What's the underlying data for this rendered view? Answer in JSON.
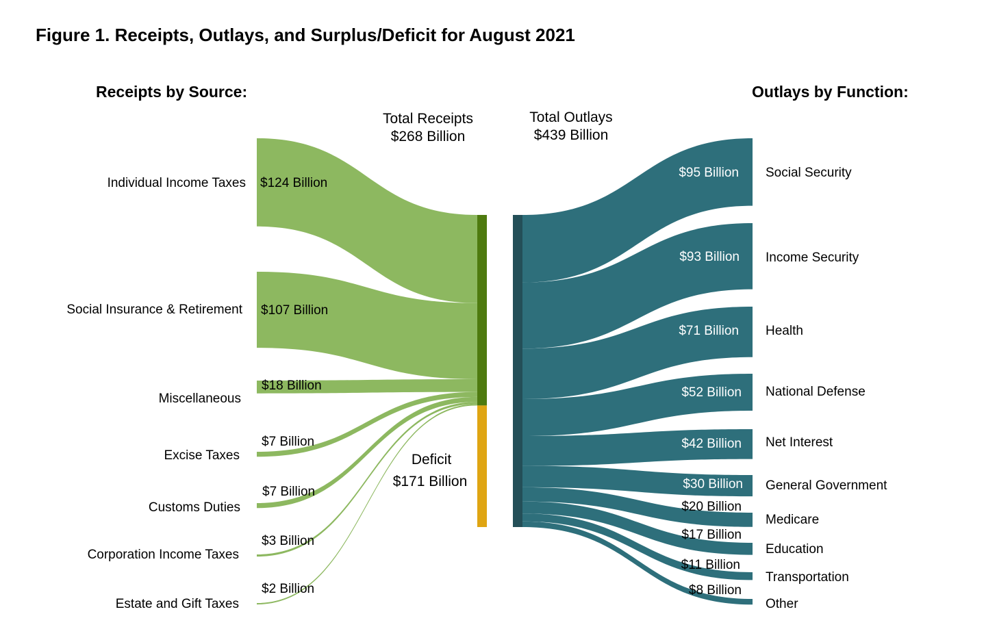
{
  "title": "Figure 1. Receipts, Outlays, and Surplus/Deficit for August 2021",
  "receipts_heading": "Receipts by Source:",
  "outlays_heading": "Outlays by Function:",
  "total_receipts": {
    "line1": "Total Receipts",
    "line2": "$268 Billion",
    "value": 268
  },
  "total_outlays": {
    "line1": "Total Outlays",
    "line2": "$439 Billion",
    "value": 439
  },
  "deficit": {
    "line1": "Deficit",
    "line2": "$171 Billion",
    "value": 171
  },
  "colors": {
    "receipts_flow": "#8db860",
    "receipts_bar": "#4e7a0f",
    "deficit_bar": "#dfa513",
    "outlays_flow": "#2e6f7b",
    "outlays_bar": "#244f58",
    "outlay_value_text": "#ffffff"
  },
  "receipts": [
    {
      "name": "Individual Income Taxes",
      "label": "$124 Billion",
      "value": 124
    },
    {
      "name": "Social Insurance & Retirement",
      "label": "$107 Billion",
      "value": 107
    },
    {
      "name": "Miscellaneous",
      "label": "$18 Billion",
      "value": 18
    },
    {
      "name": "Excise Taxes",
      "label": "$7 Billion",
      "value": 7
    },
    {
      "name": "Customs Duties",
      "label": "$7 Billion",
      "value": 7
    },
    {
      "name": "Corporation Income Taxes",
      "label": "$3 Billion",
      "value": 3
    },
    {
      "name": "Estate and Gift Taxes",
      "label": "$2 Billion",
      "value": 2
    }
  ],
  "outlays": [
    {
      "name": "Social Security",
      "label": "$95 Billion",
      "value": 95
    },
    {
      "name": "Income Security",
      "label": "$93 Billion",
      "value": 93
    },
    {
      "name": "Health",
      "label": "$71 Billion",
      "value": 71
    },
    {
      "name": "National Defense",
      "label": "$52 Billion",
      "value": 52
    },
    {
      "name": "Net Interest",
      "label": "$42 Billion",
      "value": 42
    },
    {
      "name": "General Government",
      "label": "$30 Billion",
      "value": 30
    },
    {
      "name": "Medicare",
      "label": "$20 Billion",
      "value": 20
    },
    {
      "name": "Education",
      "label": "$17 Billion",
      "value": 17
    },
    {
      "name": "Transportation",
      "label": "$11 Billion",
      "value": 11
    },
    {
      "name": "Other",
      "label": "$8 Billion",
      "value": 8
    }
  ]
}
